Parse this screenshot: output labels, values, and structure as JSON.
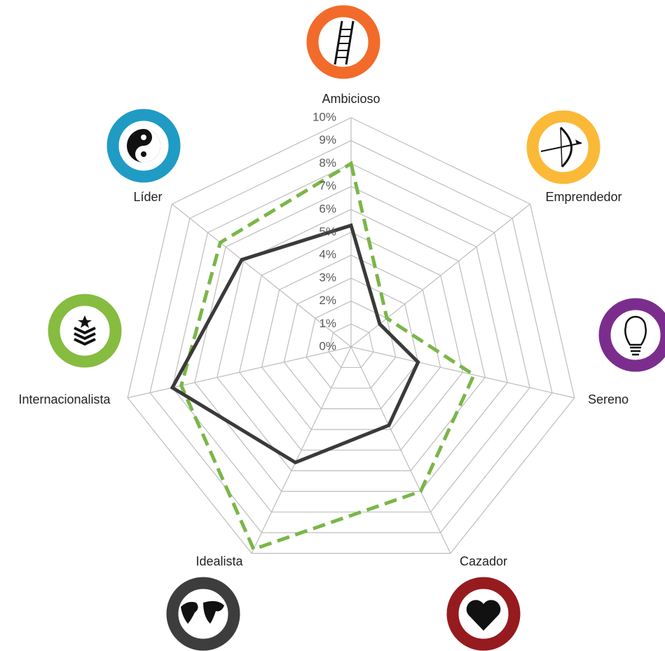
{
  "chart_data": {
    "type": "radar",
    "categories": [
      "Ambicioso",
      "Emprendedor",
      "Sereno",
      "Cazador",
      "Idealista",
      "Internacionalista",
      "Líder"
    ],
    "series": [
      {
        "color": "#7ab648",
        "dashed": true,
        "values": [
          8,
          2,
          5.5,
          7,
          9.8,
          7.6,
          7.3
        ]
      },
      {
        "color": "#3a3a3a",
        "dashed": false,
        "values": [
          5.3,
          1.6,
          3,
          3.8,
          5.6,
          8,
          6.1
        ]
      }
    ],
    "ylim": [
      0,
      10
    ],
    "yticks": [
      {
        "value": 0,
        "label": "0%"
      },
      {
        "value": 1,
        "label": "1%"
      },
      {
        "value": 2,
        "label": "2%"
      },
      {
        "value": 3,
        "label": "3%"
      },
      {
        "value": 4,
        "label": "4%"
      },
      {
        "value": 5,
        "label": "5%"
      },
      {
        "value": 6,
        "label": "6%"
      },
      {
        "value": 7,
        "label": "7%"
      },
      {
        "value": 8,
        "label": "8%"
      },
      {
        "value": 9,
        "label": "9%"
      },
      {
        "value": 10,
        "label": "10%"
      }
    ],
    "grid": true
  }
}
